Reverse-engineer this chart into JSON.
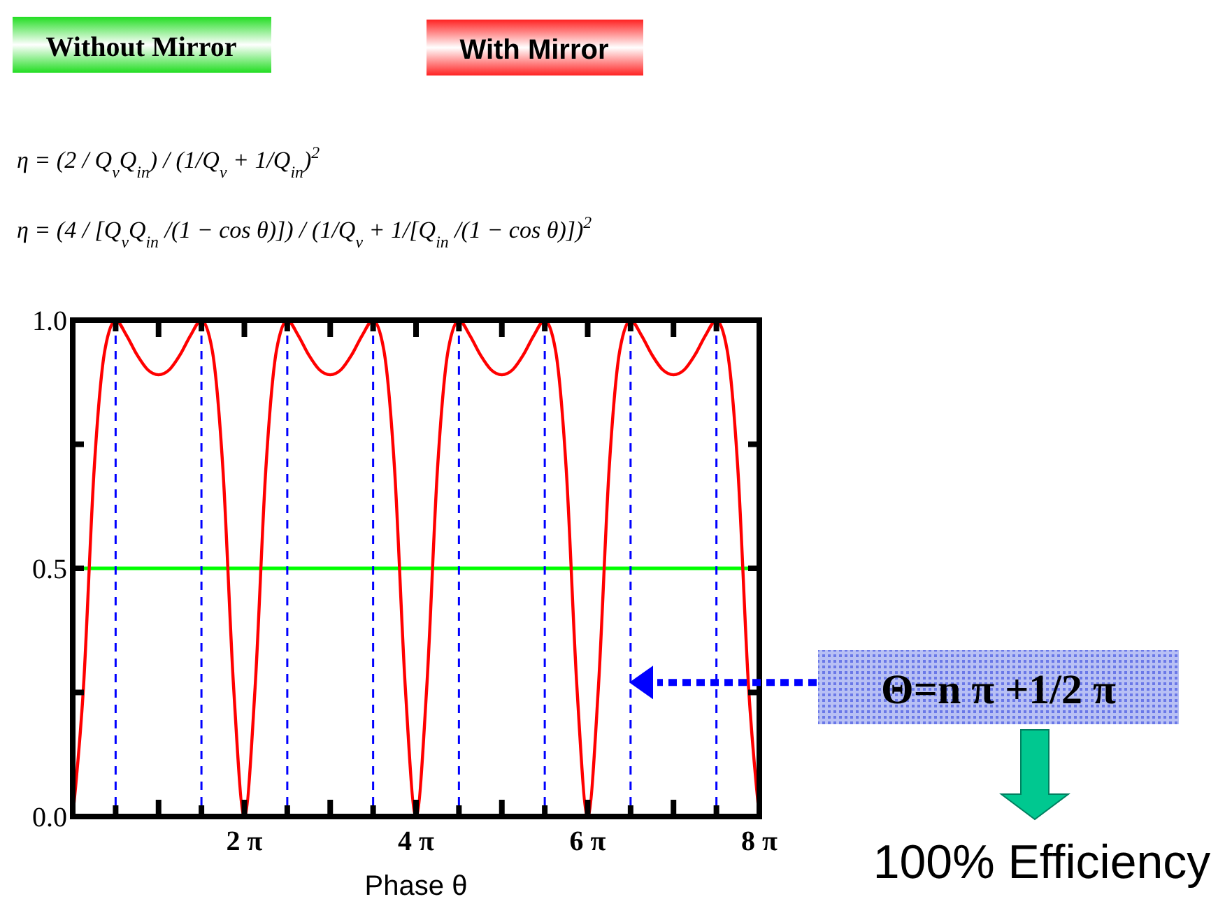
{
  "chart_data": {
    "type": "line",
    "xlabel": "Phase  θ",
    "x": [
      0,
      0.393,
      0.785,
      1.178,
      1.571,
      1.963,
      2.356,
      2.749,
      3.142,
      3.534,
      3.927,
      4.32,
      4.712,
      5.105,
      5.498,
      5.89,
      6.283,
      6.676,
      7.069,
      7.461,
      7.854,
      8.247,
      8.639,
      9.032,
      9.425,
      9.817,
      10.21,
      10.603,
      10.996,
      11.388,
      11.781,
      12.174,
      12.566,
      12.959,
      13.352,
      13.744,
      14.137,
      14.53,
      14.923,
      15.315,
      15.708,
      16.101,
      16.493,
      16.886,
      17.279,
      17.671,
      18.064,
      18.457,
      18.85,
      19.242,
      19.635,
      20.028,
      20.42,
      20.813,
      21.206,
      21.598,
      21.991,
      22.384,
      22.777,
      23.169,
      23.562,
      23.955,
      24.347,
      24.74,
      25.133
    ],
    "series": [
      {
        "color": "#ff0000",
        "values": [
          0,
          0.26,
          0.7,
          0.94,
          1,
          0.97,
          0.93,
          0.9,
          0.89,
          0.9,
          0.93,
          0.97,
          1,
          0.94,
          0.7,
          0.26,
          0,
          0.26,
          0.7,
          0.94,
          1,
          0.97,
          0.93,
          0.9,
          0.89,
          0.9,
          0.93,
          0.97,
          1,
          0.94,
          0.7,
          0.26,
          0,
          0.26,
          0.7,
          0.94,
          1,
          0.97,
          0.93,
          0.9,
          0.89,
          0.9,
          0.93,
          0.97,
          1,
          0.94,
          0.7,
          0.26,
          0,
          0.26,
          0.7,
          0.94,
          1,
          0.97,
          0.93,
          0.9,
          0.89,
          0.9,
          0.93,
          0.97,
          1,
          0.94,
          0.7,
          0.26,
          0
        ]
      }
    ],
    "xlim": [
      0,
      25.133
    ],
    "xticks": [
      {
        "value": 0,
        "label": null
      },
      {
        "value": 1.571,
        "label": null
      },
      {
        "value": 3.142,
        "label": null
      },
      {
        "value": 4.712,
        "label": null
      },
      {
        "value": 6.283,
        "label": "2 π"
      },
      {
        "value": 7.854,
        "label": null
      },
      {
        "value": 9.425,
        "label": null
      },
      {
        "value": 10.996,
        "label": null
      },
      {
        "value": 12.566,
        "label": "4 π"
      },
      {
        "value": 14.137,
        "label": null
      },
      {
        "value": 15.708,
        "label": null
      },
      {
        "value": 17.279,
        "label": null
      },
      {
        "value": 18.85,
        "label": "6 π"
      },
      {
        "value": 20.42,
        "label": null
      },
      {
        "value": 21.991,
        "label": null
      },
      {
        "value": 23.562,
        "label": null
      },
      {
        "value": 25.133,
        "label": "8 π"
      }
    ],
    "ylim": [
      0,
      1
    ],
    "yticks": [
      {
        "value": 0,
        "label": "0.0"
      },
      {
        "value": 0.25,
        "label": null
      },
      {
        "value": 0.5,
        "label": "0.5"
      },
      {
        "value": 0.75,
        "label": null
      },
      {
        "value": 1,
        "label": "1.0"
      }
    ],
    "grid": false,
    "marker": "none",
    "line_style": "solid",
    "ref_lines": [
      {
        "axis": "y",
        "value": 0.5,
        "color": "#00ff00",
        "line_style": "solid"
      },
      {
        "axis": "x",
        "value": 1.571,
        "color": "#0000ff",
        "line_style": "dashed"
      },
      {
        "axis": "x",
        "value": 4.712,
        "color": "#0000ff",
        "line_style": "dashed"
      },
      {
        "axis": "x",
        "value": 7.854,
        "color": "#0000ff",
        "line_style": "dashed"
      },
      {
        "axis": "x",
        "value": 10.996,
        "color": "#0000ff",
        "line_style": "dashed"
      },
      {
        "axis": "x",
        "value": 14.137,
        "color": "#0000ff",
        "line_style": "dashed"
      },
      {
        "axis": "x",
        "value": 17.279,
        "color": "#0000ff",
        "line_style": "dashed"
      },
      {
        "axis": "x",
        "value": 20.42,
        "color": "#0000ff",
        "line_style": "dashed"
      },
      {
        "axis": "x",
        "value": 23.562,
        "color": "#0000ff",
        "line_style": "dashed"
      }
    ],
    "annotations": [
      "Without Mirror",
      "With Mirror",
      "η = (2 / Q$_{v}$Q$_{in}$) / (1/Q$_{v}$ + 1/Q$_{in}$)$^{2}$",
      "η = (4 / [Q$_{v}$Q$_{in}$ /(1 − cos θ)]) / (1/Q$_{v}$ + 1/[Q$_{in}$ /(1 − cos θ)])$^{2}$",
      "Θ=n π +1/2  π",
      "100% Efficiency"
    ]
  }
}
